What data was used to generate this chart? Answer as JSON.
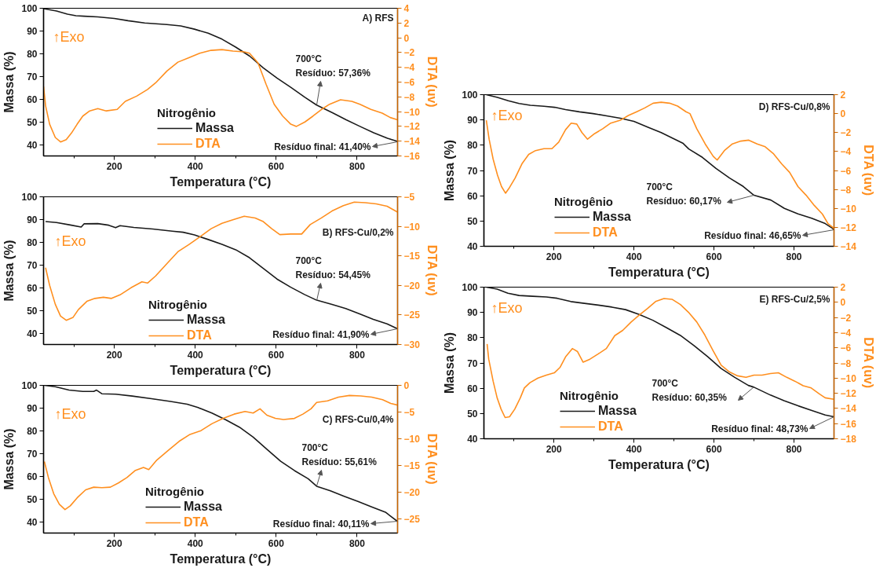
{
  "chart_data": [
    {
      "type": "line",
      "title": "A) RFS",
      "xlabel": "Temperatura (°C)",
      "ylabel": "Massa (%)",
      "y2label": "DTA (uv)",
      "legend_title": "Nitrogênio",
      "legend": "bottom",
      "xlim": [
        25,
        900
      ],
      "xticks": [
        {
          "value": 100,
          "label": null
        },
        200,
        {
          "value": 300,
          "label": null
        },
        400,
        {
          "value": 500,
          "label": null
        },
        600,
        {
          "value": 700,
          "label": null
        },
        800
      ],
      "ylim": [
        35,
        100
      ],
      "yticks": [
        40,
        50,
        60,
        70,
        80,
        90,
        100
      ],
      "y2lim": [
        -16,
        4
      ],
      "y2ticks": [
        -16,
        -14,
        -12,
        -10,
        -8,
        -6,
        -4,
        -2,
        0,
        2,
        4
      ],
      "series": [
        {
          "name": "Massa",
          "color": "#1a1a1a",
          "x": [
            25,
            57,
            84,
            105,
            125,
            159,
            200,
            234,
            275,
            330,
            364,
            398,
            432,
            466,
            500,
            534,
            568,
            602,
            636,
            671,
            700,
            739,
            773,
            807,
            841,
            875,
            900
          ],
          "values": [
            99.8,
            98.8,
            97.4,
            96.7,
            96.5,
            96.2,
            95.5,
            94.5,
            93.5,
            92.8,
            92.2,
            90.8,
            89.0,
            86.4,
            82.9,
            79.0,
            73.8,
            69.3,
            65.2,
            60.8,
            57.4,
            54.0,
            50.9,
            48.0,
            45.2,
            42.8,
            41.4
          ]
        },
        {
          "name": "DTA",
          "color": "#ff8f1f",
          "axis": "y2",
          "x": [
            25,
            30,
            40,
            54,
            67,
            81,
            94,
            108,
            122,
            139,
            159,
            180,
            207,
            227,
            255,
            282,
            302,
            330,
            357,
            384,
            411,
            439,
            466,
            493,
            521,
            534,
            555,
            575,
            595,
            616,
            636,
            650,
            671,
            691,
            712,
            732,
            759,
            787,
            807,
            834,
            862,
            882,
            900
          ],
          "values": [
            -6.6,
            -9.2,
            -11.7,
            -13.5,
            -14.1,
            -13.8,
            -12.9,
            -11.7,
            -10.6,
            -9.9,
            -9.6,
            -9.9,
            -9.7,
            -8.6,
            -7.9,
            -7.0,
            -6.1,
            -4.5,
            -3.3,
            -2.7,
            -2.1,
            -1.7,
            -1.6,
            -1.8,
            -1.9,
            -2.1,
            -3.4,
            -6.3,
            -9.0,
            -10.6,
            -11.7,
            -12.0,
            -11.4,
            -10.6,
            -9.7,
            -9.0,
            -8.4,
            -8.6,
            -9.0,
            -9.7,
            -10.2,
            -10.8,
            -11.1
          ]
        }
      ],
      "annotations": [
        "↑Exo",
        "700°C\nResíduo: 57,36%",
        "Resíduo final: 41,40%"
      ]
    },
    {
      "type": "line",
      "title": "B) RFS-Cu/0,2%",
      "xlabel": "Temperatura (°C)",
      "ylabel": "Massa (%)",
      "y2label": "DTA (uv)",
      "legend_title": "Nitrogênio",
      "legend": "bottom",
      "xlim": [
        25,
        900
      ],
      "xticks": [
        {
          "value": 100,
          "label": null
        },
        200,
        {
          "value": 300,
          "label": null
        },
        400,
        {
          "value": 500,
          "label": null
        },
        600,
        {
          "value": 700,
          "label": null
        },
        800
      ],
      "ylim": [
        35,
        100
      ],
      "yticks": [
        40,
        50,
        60,
        70,
        80,
        90,
        100
      ],
      "y2lim": [
        -30,
        -5
      ],
      "y2ticks": [
        -30,
        -25,
        -20,
        -15,
        -10,
        -5
      ],
      "series": [
        {
          "name": "Massa",
          "color": "#1a1a1a",
          "x": [
            30,
            57,
            91,
            118,
            125,
            159,
            186,
            203,
            214,
            248,
            295,
            343,
            370,
            398,
            432,
            466,
            500,
            534,
            568,
            602,
            636,
            670,
            700,
            738,
            772,
            806,
            840,
            874,
            900
          ],
          "values": [
            89.1,
            88.7,
            87.6,
            86.7,
            88.1,
            88.2,
            87.5,
            86.4,
            87.3,
            86.5,
            85.8,
            84.9,
            84.4,
            83.2,
            81.2,
            79.1,
            76.7,
            73.2,
            68.5,
            63.8,
            60.2,
            57.0,
            54.5,
            52.6,
            50.8,
            48.5,
            46.1,
            44.1,
            41.9
          ]
        },
        {
          "name": "DTA",
          "color": "#ff8f1f",
          "axis": "y2",
          "x": [
            30,
            40,
            54,
            67,
            81,
            98,
            111,
            132,
            152,
            173,
            193,
            214,
            241,
            268,
            282,
            302,
            330,
            357,
            384,
            411,
            439,
            466,
            493,
            521,
            548,
            568,
            589,
            609,
            636,
            663,
            684,
            711,
            738,
            766,
            793,
            820,
            847,
            874,
            900
          ],
          "values": [
            -17.0,
            -20.0,
            -23.2,
            -25.2,
            -25.9,
            -25.4,
            -24.1,
            -22.7,
            -22.2,
            -22.0,
            -22.2,
            -21.6,
            -20.4,
            -19.4,
            -19.6,
            -18.4,
            -16.3,
            -14.3,
            -13.1,
            -11.8,
            -10.4,
            -9.5,
            -8.9,
            -8.3,
            -8.6,
            -9.2,
            -10.4,
            -11.4,
            -11.3,
            -11.3,
            -9.7,
            -8.6,
            -7.4,
            -6.5,
            -5.9,
            -6.0,
            -6.2,
            -6.6,
            -7.6
          ]
        }
      ],
      "annotations": [
        "↑Exo",
        "700°C\nResíduo: 54,45%",
        "Resíduo final: 41,90%"
      ]
    },
    {
      "type": "line",
      "title": "C) RFS-Cu/0,4%",
      "xlabel": "Temperatura (°C)",
      "ylabel": "Massa (%)",
      "y2label": "DTA (uv)",
      "legend_title": "Nitrogênio",
      "legend": "bottom",
      "xlim": [
        25,
        900
      ],
      "xticks": [
        {
          "value": 100,
          "label": null
        },
        200,
        {
          "value": 300,
          "label": null
        },
        400,
        {
          "value": 500,
          "label": null
        },
        600,
        {
          "value": 700,
          "label": null
        },
        800
      ],
      "ylim": [
        35,
        100
      ],
      "yticks": [
        40,
        50,
        60,
        70,
        80,
        90,
        100
      ],
      "y2lim": [
        -27.7,
        0
      ],
      "y2ticks": [
        -25,
        -20,
        -15,
        -10,
        -5,
        0
      ],
      "series": [
        {
          "name": "Massa",
          "color": "#1a1a1a",
          "x": [
            27,
            54,
            88,
            122,
            149,
            156,
            169,
            203,
            244,
            292,
            339,
            380,
            407,
            441,
            475,
            509,
            543,
            577,
            611,
            645,
            679,
            700,
            734,
            768,
            802,
            836,
            870,
            883,
            900
          ],
          "values": [
            100,
            99.4,
            97.9,
            97.3,
            97.3,
            97.9,
            96.3,
            96.1,
            95.3,
            94.1,
            92.9,
            91.7,
            90.2,
            87.8,
            84.9,
            81.6,
            77.2,
            71.9,
            66.6,
            62.5,
            58.9,
            55.6,
            53.6,
            51.2,
            48.9,
            46.5,
            44.2,
            42.4,
            40.1
          ]
        },
        {
          "name": "DTA",
          "color": "#ff8f1f",
          "axis": "y2",
          "x": [
            27,
            37,
            50,
            64,
            78,
            91,
            108,
            129,
            149,
            169,
            190,
            210,
            231,
            251,
            272,
            285,
            305,
            333,
            360,
            387,
            414,
            441,
            469,
            496,
            523,
            543,
            560,
            577,
            598,
            618,
            645,
            666,
            686,
            700,
            727,
            754,
            781,
            809,
            836,
            863,
            883,
            900
          ],
          "values": [
            -14.3,
            -17.3,
            -20.3,
            -22.3,
            -23.3,
            -22.6,
            -21.1,
            -19.6,
            -19.1,
            -19.2,
            -19.1,
            -18.3,
            -17.3,
            -16.0,
            -15.4,
            -15.8,
            -14.0,
            -12.2,
            -10.5,
            -9.2,
            -8.5,
            -7.2,
            -6.2,
            -5.4,
            -4.9,
            -5.2,
            -4.4,
            -5.6,
            -6.2,
            -6.4,
            -6.2,
            -5.4,
            -4.4,
            -3.2,
            -2.9,
            -2.2,
            -1.9,
            -2.0,
            -2.2,
            -2.7,
            -3.4,
            -3.7
          ]
        }
      ],
      "annotations": [
        "↑Exo",
        "700°C\nResíduo: 55,61%",
        "Resíduo final: 40,11%"
      ]
    },
    {
      "type": "line",
      "title": "D) RFS-Cu/0,8%",
      "xlabel": "Temperatura (°C)",
      "ylabel": "Massa (%)",
      "y2label": "DTA (uv)",
      "legend_title": "Nitrogênio",
      "legend": "bottom",
      "xlim": [
        25,
        900
      ],
      "xticks": [
        {
          "value": 100,
          "label": null
        },
        200,
        {
          "value": 300,
          "label": null
        },
        400,
        {
          "value": 500,
          "label": null
        },
        600,
        {
          "value": 700,
          "label": null
        },
        800
      ],
      "ylim": [
        40,
        100
      ],
      "yticks": [
        40,
        50,
        60,
        70,
        80,
        90,
        100
      ],
      "y2lim": [
        -14,
        2
      ],
      "y2ticks": [
        -14,
        -12,
        -10,
        -8,
        -6,
        -4,
        -2,
        0,
        2
      ],
      "series": [
        {
          "name": "Massa",
          "color": "#1a1a1a",
          "x": [
            31,
            59,
            86,
            113,
            141,
            175,
            202,
            229,
            264,
            298,
            332,
            366,
            400,
            434,
            468,
            503,
            523,
            537,
            571,
            605,
            639,
            673,
            700,
            742,
            776,
            810,
            844,
            878,
            900
          ],
          "values": [
            100,
            98.9,
            97.6,
            96.5,
            95.8,
            95.4,
            95.0,
            94.1,
            93.2,
            92.5,
            91.6,
            90.7,
            89.4,
            87.2,
            85.0,
            82.3,
            80.7,
            78.5,
            75.2,
            70.8,
            67.0,
            63.7,
            60.2,
            58.3,
            55.0,
            52.8,
            51.1,
            49.0,
            46.7
          ]
        },
        {
          "name": "DTA",
          "color": "#ff8f1f",
          "axis": "y2",
          "x": [
            31,
            38,
            48,
            59,
            69,
            79,
            89,
            103,
            120,
            137,
            154,
            175,
            195,
            212,
            229,
            243,
            257,
            270,
            284,
            302,
            322,
            342,
            366,
            386,
            407,
            427,
            448,
            468,
            489,
            509,
            530,
            540,
            557,
            578,
            598,
            608,
            626,
            646,
            667,
            687,
            708,
            728,
            748,
            769,
            789,
            810,
            830,
            851,
            871,
            885,
            900
          ],
          "values": [
            -0.7,
            -2.7,
            -4.8,
            -6.5,
            -7.7,
            -8.4,
            -7.8,
            -6.8,
            -5.3,
            -4.3,
            -3.9,
            -3.7,
            -3.7,
            -3.0,
            -1.7,
            -1.0,
            -1.1,
            -2.0,
            -2.7,
            -2.1,
            -1.6,
            -1.0,
            -0.7,
            -0.2,
            0.2,
            0.6,
            1.1,
            1.2,
            1.1,
            0.8,
            0.2,
            0.0,
            -1.6,
            -3.2,
            -4.5,
            -4.9,
            -3.9,
            -3.2,
            -2.9,
            -2.8,
            -3.2,
            -3.5,
            -4.2,
            -5.3,
            -6.2,
            -7.7,
            -8.6,
            -9.7,
            -10.6,
            -11.6,
            -12.1
          ]
        }
      ],
      "annotations": [
        "↑Exo",
        "700°C\nResíduo: 60,17%",
        "Resíduo final: 46,65%"
      ]
    },
    {
      "type": "line",
      "title": "E) RFS-Cu/2,5%",
      "xlabel": "Temperatura (°C)",
      "ylabel": "Massa (%)",
      "y2label": "DTA (uv)",
      "legend_title": "Nitrogênio",
      "legend": "bottom",
      "xlim": [
        25,
        900
      ],
      "xticks": [
        {
          "value": 100,
          "label": null
        },
        200,
        {
          "value": 300,
          "label": null
        },
        400,
        {
          "value": 500,
          "label": null
        },
        600,
        {
          "value": 700,
          "label": null
        },
        800
      ],
      "ylim": [
        40,
        100
      ],
      "yticks": [
        40,
        50,
        60,
        70,
        80,
        90,
        100
      ],
      "y2lim": [
        -18,
        2
      ],
      "y2ticks": [
        -18,
        -16,
        -14,
        -12,
        -10,
        -8,
        -6,
        -4,
        -2,
        0,
        2
      ],
      "series": [
        {
          "name": "Massa",
          "color": "#1a1a1a",
          "x": [
            31,
            58,
            85,
            113,
            147,
            181,
            208,
            242,
            276,
            311,
            345,
            379,
            413,
            447,
            481,
            516,
            550,
            584,
            618,
            652,
            686,
            700,
            741,
            775,
            809,
            843,
            878,
            900
          ],
          "values": [
            100,
            99.2,
            97.6,
            96.7,
            96.4,
            96.1,
            95.6,
            94.3,
            93.6,
            92.9,
            92.1,
            91.1,
            89.2,
            86.9,
            84.0,
            80.9,
            76.9,
            72.5,
            67.8,
            64.3,
            61.1,
            60.4,
            57.3,
            55.1,
            53.1,
            51.3,
            49.4,
            48.7
          ]
        },
        {
          "name": "DTA",
          "color": "#ff8f1f",
          "axis": "y2",
          "x": [
            33,
            37,
            48,
            58,
            68,
            78,
            89,
            102,
            116,
            126,
            140,
            160,
            181,
            201,
            215,
            229,
            246,
            259,
            273,
            290,
            311,
            331,
            352,
            372,
            393,
            413,
            434,
            454,
            475,
            495,
            516,
            536,
            557,
            577,
            598,
            618,
            639,
            659,
            680,
            700,
            720,
            741,
            761,
            782,
            802,
            823,
            843,
            864,
            878,
            900
          ],
          "values": [
            -5.5,
            -7.5,
            -10.4,
            -12.6,
            -14.1,
            -15.2,
            -15.1,
            -14.1,
            -12.6,
            -11.3,
            -10.6,
            -10.0,
            -9.6,
            -9.3,
            -8.6,
            -7.2,
            -6.1,
            -6.5,
            -7.9,
            -7.5,
            -6.8,
            -6.1,
            -4.4,
            -3.7,
            -2.6,
            -1.7,
            -0.8,
            0.1,
            0.5,
            0.4,
            -0.3,
            -1.3,
            -2.6,
            -4.3,
            -6.4,
            -8.3,
            -9.2,
            -9.7,
            -9.9,
            -9.6,
            -9.6,
            -9.4,
            -9.3,
            -9.9,
            -10.4,
            -11.0,
            -11.3,
            -12.1,
            -12.6,
            -12.8
          ]
        }
      ],
      "annotations": [
        "↑Exo",
        "700°C\nResíduo: 60,35%",
        "Resíduo final: 48,73%"
      ]
    }
  ]
}
